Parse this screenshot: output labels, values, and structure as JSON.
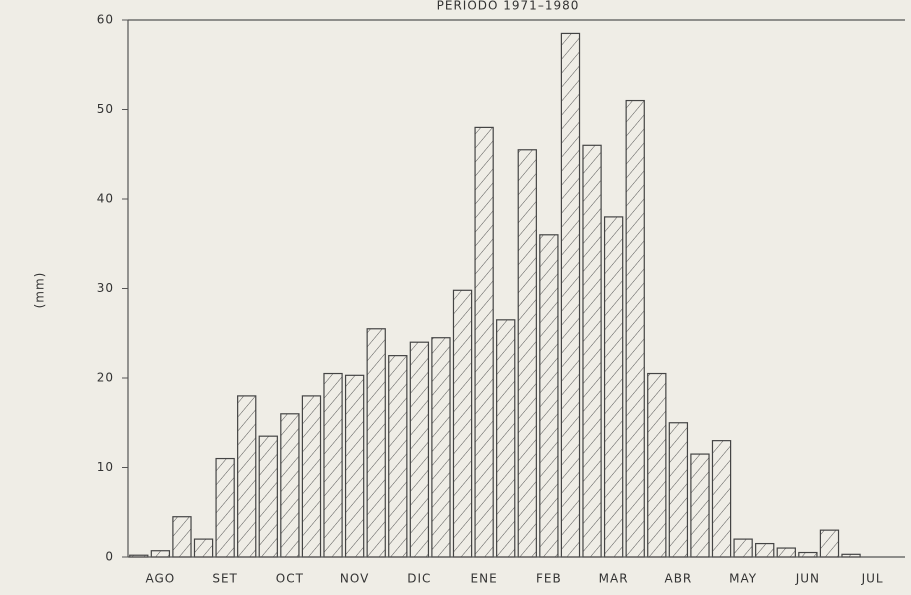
{
  "chart_data": {
    "type": "bar",
    "title": "PERIODO 1971–1980",
    "y_label": "(mm)",
    "categories": [
      null,
      "AGO",
      null,
      null,
      "SET",
      null,
      null,
      "OCT",
      null,
      null,
      "NOV",
      null,
      null,
      "DIC",
      null,
      null,
      "ENE",
      null,
      null,
      "FEB",
      null,
      null,
      "MAR",
      null,
      null,
      "ABR",
      null,
      null,
      "MAY",
      null,
      null,
      "JUN",
      null,
      null,
      "JUL",
      null
    ],
    "values": [
      0.2,
      0.7,
      4.5,
      2,
      11,
      18,
      13.5,
      16,
      18,
      20.5,
      20.3,
      25.5,
      22.5,
      24,
      24.5,
      29.8,
      48,
      26.5,
      45.5,
      36,
      58.5,
      46,
      38,
      51,
      20.5,
      15,
      11.5,
      13,
      2,
      1.5,
      1,
      0.5,
      3,
      0.3,
      0,
      0
    ],
    "color": "#444444",
    "ylim": [
      0,
      60
    ],
    "yticks": [
      0,
      10,
      20,
      30,
      40,
      50,
      60
    ]
  }
}
